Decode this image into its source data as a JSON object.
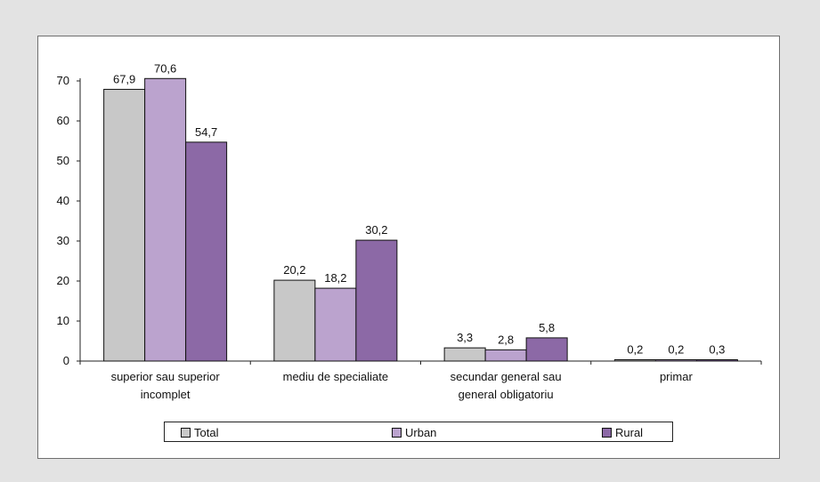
{
  "chart_data": {
    "type": "bar",
    "categories": [
      [
        "superior sau superior",
        "incomplet"
      ],
      [
        "mediu de specialiate"
      ],
      [
        "secundar general sau",
        "general obligatoriu"
      ],
      [
        "primar"
      ]
    ],
    "series": [
      {
        "name": "Total",
        "color": "#c8c8c8",
        "values": [
          67.9,
          20.2,
          3.3,
          0.2
        ],
        "labels": [
          "67,9",
          "20,2",
          "3,3",
          "0,2"
        ]
      },
      {
        "name": "Urban",
        "color": "#bba3ce",
        "values": [
          70.6,
          18.2,
          2.8,
          0.2
        ],
        "labels": [
          "70,6",
          "18,2",
          "2,8",
          "0,2"
        ]
      },
      {
        "name": "Rural",
        "color": "#8c69a6",
        "values": [
          54.7,
          30.2,
          5.8,
          0.3
        ],
        "labels": [
          "54,7",
          "30,2",
          "5,8",
          "0,3"
        ]
      }
    ],
    "yticks": [
      "0",
      "10",
      "20",
      "30",
      "40",
      "50",
      "60",
      "70"
    ],
    "ylim": [
      0,
      70
    ],
    "grid": false,
    "legend_position": "bottom"
  }
}
